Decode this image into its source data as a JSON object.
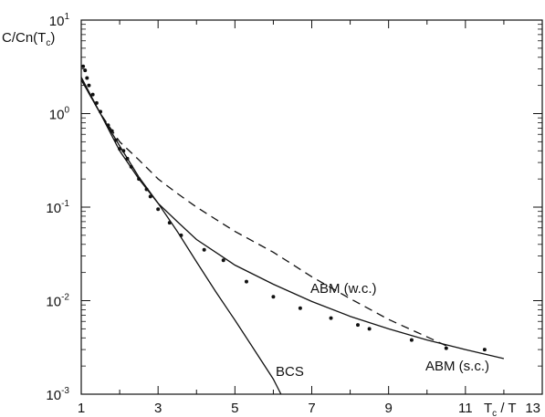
{
  "chart_data": {
    "type": "line",
    "xlabel": "Tc/T",
    "ylabel": "C/Cn(Tc)",
    "xlim": [
      1,
      13
    ],
    "ylim": [
      0.001,
      10
    ],
    "yscale": "log",
    "grid": false,
    "x_ticks": [
      "1",
      "3",
      "5",
      "7",
      "9",
      "11",
      "13"
    ],
    "y_ticks": [
      {
        "base": "10",
        "exp": "1"
      },
      {
        "base": "10",
        "exp": "0"
      },
      {
        "base": "10",
        "exp": "-1"
      },
      {
        "base": "10",
        "exp": "-2"
      },
      {
        "base": "10",
        "exp": "-3"
      }
    ],
    "series": [
      {
        "name": "BCS",
        "style": "solid",
        "x": [
          1.0,
          1.5,
          2.0,
          2.5,
          3.0,
          3.5,
          4.0,
          4.5,
          5.0,
          5.5,
          6.0,
          6.2
        ],
        "y": [
          2.45,
          1.0,
          0.45,
          0.21,
          0.11,
          0.055,
          0.026,
          0.0125,
          0.0062,
          0.003,
          0.00145,
          0.001
        ]
      },
      {
        "name": "ABM (w.c.)",
        "style": "dashed",
        "x": [
          1.0,
          1.5,
          2.0,
          2.5,
          3.0,
          3.5,
          4.0,
          5.0,
          6.0,
          7.0,
          8.0,
          9.0,
          10.0,
          10.5
        ],
        "y": [
          2.3,
          1.0,
          0.5,
          0.32,
          0.2,
          0.14,
          0.1,
          0.055,
          0.033,
          0.018,
          0.0105,
          0.0063,
          0.0041,
          0.0033
        ]
      },
      {
        "name": "ABM (s.c.)",
        "style": "solid",
        "x": [
          1.0,
          1.5,
          2.0,
          2.5,
          3.0,
          3.5,
          4.0,
          5.0,
          6.0,
          7.0,
          8.0,
          9.0,
          10.0,
          11.0,
          12.0
        ],
        "y": [
          2.3,
          1.0,
          0.4,
          0.2,
          0.11,
          0.07,
          0.045,
          0.024,
          0.015,
          0.0098,
          0.0068,
          0.005,
          0.0038,
          0.003,
          0.0024
        ]
      },
      {
        "name": "data",
        "style": "points",
        "x": [
          1.05,
          1.1,
          1.15,
          1.2,
          1.3,
          1.4,
          1.5,
          1.7,
          1.8,
          1.9,
          2.0,
          2.1,
          2.2,
          2.3,
          2.5,
          2.7,
          2.8,
          3.0,
          3.3,
          3.6,
          4.2,
          4.7,
          5.3,
          6.0,
          6.7,
          7.5,
          8.2,
          8.5,
          9.6,
          10.5,
          11.5
        ],
        "y": [
          3.2,
          2.9,
          2.4,
          2.0,
          1.6,
          1.3,
          1.05,
          0.75,
          0.65,
          0.52,
          0.42,
          0.4,
          0.33,
          0.27,
          0.2,
          0.155,
          0.13,
          0.095,
          0.068,
          0.05,
          0.035,
          0.027,
          0.016,
          0.011,
          0.0083,
          0.0065,
          0.0055,
          0.005,
          0.0038,
          0.0031,
          0.003
        ]
      }
    ],
    "annotations": [
      "ABM (w.c.)",
      "ABM (s.c.)",
      "BCS"
    ]
  }
}
